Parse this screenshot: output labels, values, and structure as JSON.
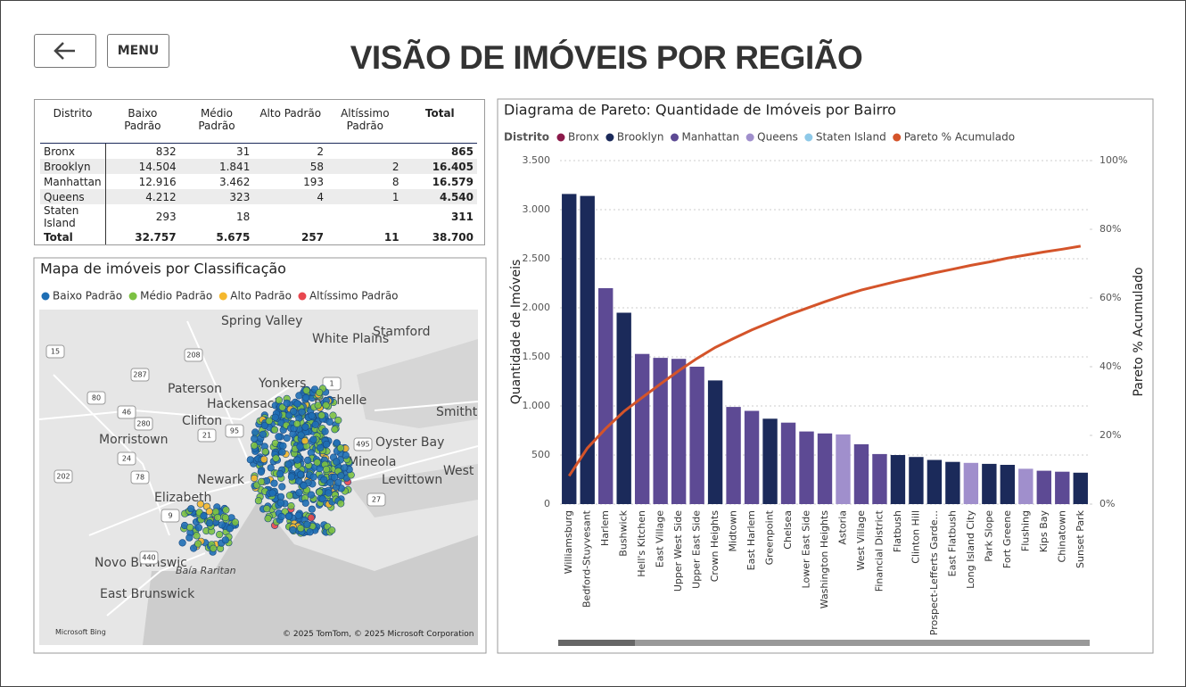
{
  "header": {
    "menu": "MENU",
    "title": "VISÃO DE IMÓVEIS POR REGIÃO"
  },
  "table": {
    "columns": [
      "Distrito",
      "Baixo Padrão",
      "Médio Padrão",
      "Alto Padrão",
      "Altíssimo Padrão",
      "Total"
    ],
    "rows": [
      [
        "Bronx",
        "832",
        "31",
        "2",
        null,
        "865"
      ],
      [
        "Brooklyn",
        "14.504",
        "1.841",
        "58",
        "2",
        "16.405"
      ],
      [
        "Manhattan",
        "12.916",
        "3.462",
        "193",
        "8",
        "16.579"
      ],
      [
        "Queens",
        "4.212",
        "323",
        "4",
        "1",
        "4.540"
      ],
      [
        "Staten Island",
        "293",
        "18",
        null,
        null,
        "311"
      ],
      [
        "Total",
        "32.757",
        "5.675",
        "257",
        "11",
        "38.700"
      ]
    ]
  },
  "map": {
    "title": "Mapa de imóveis por Classificação",
    "legend": [
      {
        "name": "Baixo Padrão",
        "color": "#1f6fb5"
      },
      {
        "name": "Médio Padrão",
        "color": "#7cc142"
      },
      {
        "name": "Alto Padrão",
        "color": "#f5b82e"
      },
      {
        "name": "Altíssimo Padrão",
        "color": "#e8474f"
      }
    ],
    "labels": [
      "Spring Valley",
      "White Plains",
      "Stamford",
      "Paterson",
      "Yonkers",
      "Hackensack",
      "Rochelle",
      "Clifton",
      "Smitht",
      "Morristown",
      "Newark",
      "Oyster Bay",
      "Mineola",
      "Elizabeth",
      "Levittown",
      "West Babylo",
      "Novo Brunswic",
      "East Brunswick",
      "Baía Raritan"
    ],
    "routes": [
      "287",
      "208",
      "15",
      "80",
      "46",
      "280",
      "24",
      "78",
      "202",
      "95",
      "21",
      "1",
      "495",
      "27",
      "440",
      "9"
    ],
    "copyright": "© 2025 TomTom, © 2025 Microsoft Corporation",
    "provider": "Microsoft Bing"
  },
  "chart_data": {
    "type": "bar",
    "title": "Diagrama de Pareto: Quantidade de Imóveis por Bairro",
    "legend_title": "Distrito",
    "y_label": "Quantidade de Imóveis",
    "y2_label": "Pareto % Acumulado",
    "grid": true,
    "categories": [
      "Williamsburg",
      "Bedford-Stuyvesant",
      "Harlem",
      "Bushwick",
      "Hell's Kitchen",
      "East Village",
      "Upper West Side",
      "Upper East Side",
      "Crown Heights",
      "Midtown",
      "East Harlem",
      "Greenpoint",
      "Chelsea",
      "Lower East Side",
      "Washington Heights",
      "Astoria",
      "West Village",
      "Financial District",
      "Flatbush",
      "Clinton Hill",
      "Prospect-Lefferts Garde...",
      "East Flatbush",
      "Long Island City",
      "Park Slope",
      "Fort Greene",
      "Flushing",
      "Kips Bay",
      "Chinatown",
      "Sunset Park"
    ],
    "series": [
      {
        "name": "Bronx",
        "color": "#8b1a4a",
        "values": [
          null,
          null,
          null,
          null,
          null,
          null,
          null,
          null,
          null,
          null,
          null,
          null,
          null,
          null,
          null,
          null,
          null,
          null,
          null,
          null,
          null,
          null,
          null,
          null,
          null,
          null,
          null,
          null,
          null
        ]
      },
      {
        "name": "Brooklyn",
        "color": "#1b2a5a",
        "values": [
          3160,
          3140,
          null,
          1950,
          null,
          null,
          null,
          null,
          1260,
          null,
          null,
          870,
          null,
          null,
          null,
          null,
          null,
          null,
          500,
          480,
          450,
          430,
          null,
          410,
          400,
          null,
          null,
          null,
          320
        ]
      },
      {
        "name": "Manhattan",
        "color": "#5d4a94",
        "values": [
          null,
          null,
          2200,
          null,
          1530,
          1490,
          1480,
          1400,
          null,
          990,
          950,
          null,
          830,
          740,
          720,
          null,
          610,
          510,
          null,
          null,
          null,
          null,
          null,
          null,
          null,
          null,
          340,
          330,
          null
        ]
      },
      {
        "name": "Queens",
        "color": "#a08fcc",
        "values": [
          null,
          null,
          null,
          null,
          null,
          null,
          null,
          null,
          null,
          null,
          null,
          null,
          null,
          null,
          null,
          710,
          null,
          null,
          null,
          null,
          null,
          null,
          420,
          null,
          null,
          360,
          null,
          null,
          null
        ]
      },
      {
        "name": "Staten Island",
        "color": "#8ec9e8",
        "values": [
          null,
          null,
          null,
          null,
          null,
          null,
          null,
          null,
          null,
          null,
          null,
          null,
          null,
          null,
          null,
          null,
          null,
          null,
          null,
          null,
          null,
          null,
          null,
          null,
          null,
          null,
          null,
          null,
          null
        ]
      },
      {
        "name": "Pareto % Acumulado",
        "color": "#d4542a",
        "type": "line",
        "axis": "y2",
        "values": [
          8.2,
          16.3,
          22,
          27,
          31,
          35,
          38.8,
          42.4,
          45.6,
          48.2,
          50.7,
          52.9,
          55.1,
          57,
          58.9,
          60.7,
          62.3,
          63.6,
          64.9,
          66.1,
          67.3,
          68.4,
          69.5,
          70.5,
          71.6,
          72.5,
          73.4,
          74.2,
          75.1
        ]
      }
    ],
    "ylim": [
      0,
      3500
    ],
    "yticks": [
      0,
      500,
      {
        "value": 1000,
        "label": "1.000"
      },
      {
        "value": 1500,
        "label": "1.500"
      },
      {
        "value": 2000,
        "label": "2.000"
      },
      {
        "value": 2500,
        "label": "2.500"
      },
      {
        "value": 3000,
        "label": "3.000"
      },
      {
        "value": 3500,
        "label": "3.500"
      }
    ],
    "y2lim": [
      0,
      100
    ],
    "y2ticks": [
      {
        "value": 0,
        "label": "0%"
      },
      {
        "value": 20,
        "label": "20%"
      },
      {
        "value": 40,
        "label": "40%"
      },
      {
        "value": 60,
        "label": "60%"
      },
      {
        "value": 80,
        "label": "80%"
      },
      {
        "value": 100,
        "label": "100%"
      }
    ]
  }
}
